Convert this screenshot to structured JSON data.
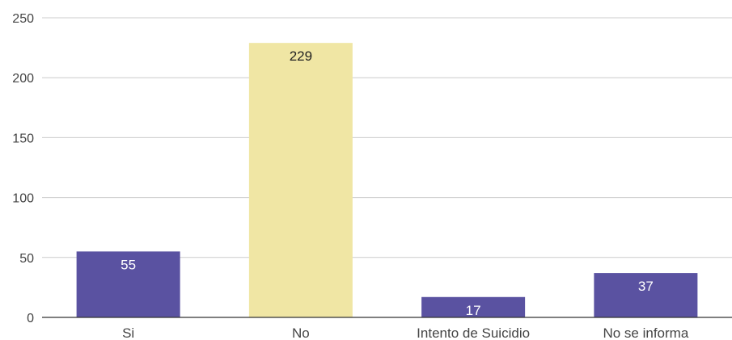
{
  "chart_data": {
    "type": "bar",
    "title": "",
    "xlabel": "",
    "ylabel": "",
    "categories": [
      "Si",
      "No",
      "Intento de Suicidio",
      "No se informa"
    ],
    "values": [
      55,
      229,
      17,
      37
    ],
    "data_labels": [
      "55",
      "229",
      "17",
      "37"
    ],
    "bar_colors": [
      "#5a52a1",
      "#f0e6a4",
      "#5a52a1",
      "#5a52a1"
    ],
    "label_colors": [
      "#ffffff",
      "#222222",
      "#ffffff",
      "#ffffff"
    ],
    "ylim": [
      0,
      250
    ],
    "yticks": [
      0,
      50,
      100,
      150,
      200,
      250
    ],
    "grid": true,
    "legend": "none"
  }
}
